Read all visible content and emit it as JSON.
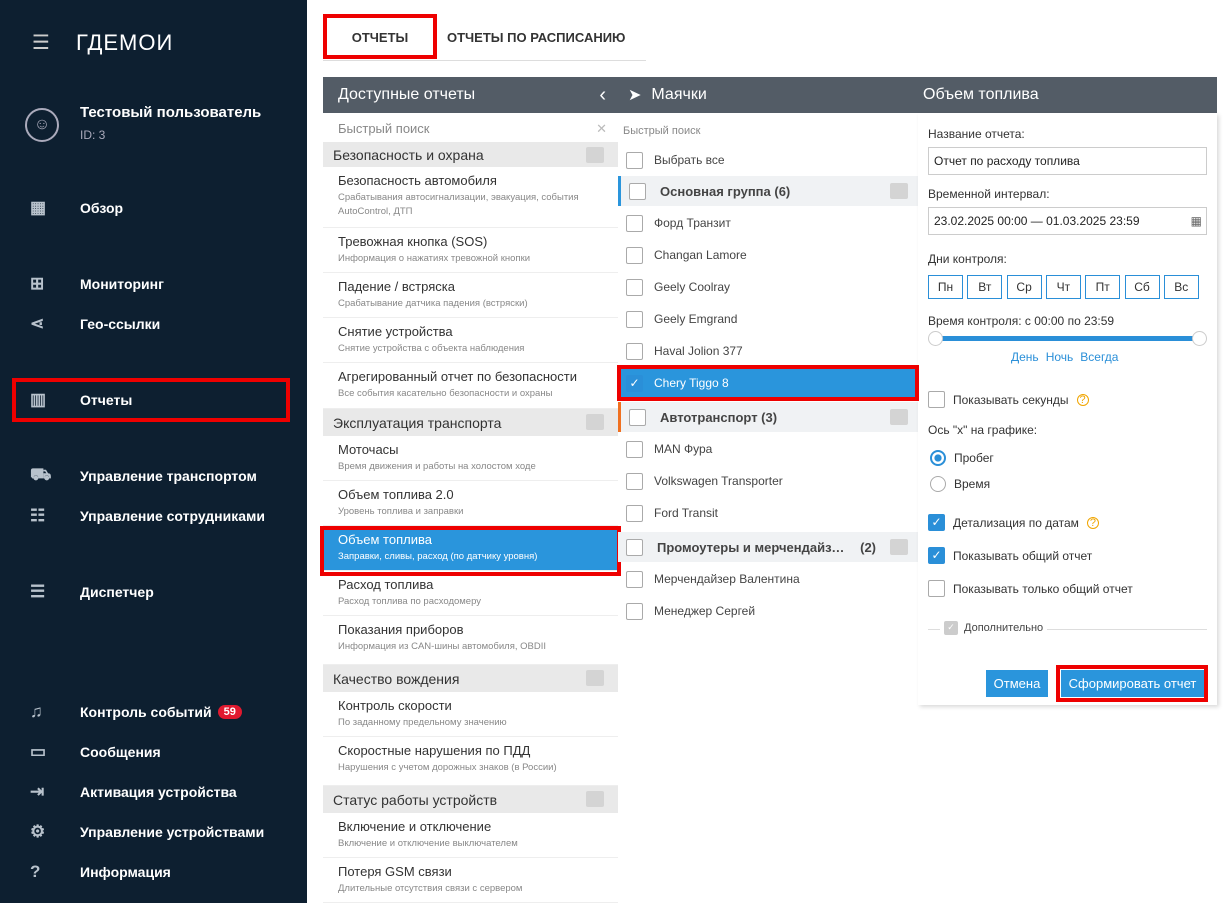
{
  "app": {
    "logo": "ГДЕМОИ",
    "user_name": "Тестовый пользователь",
    "user_id": "ID: 3"
  },
  "sidebar": {
    "items": [
      {
        "label": "Обзор",
        "icon": "dashboard-icon",
        "glyph": "▦"
      },
      {
        "label": "Мониторинг",
        "icon": "map-icon",
        "glyph": "⊞"
      },
      {
        "label": "Гео-ссылки",
        "icon": "share-icon",
        "glyph": "⋖"
      },
      {
        "label": "Отчеты",
        "icon": "chart-icon",
        "glyph": "▥",
        "active": true
      },
      {
        "label": "Управление транспортом",
        "icon": "car-icon",
        "glyph": "⛟"
      },
      {
        "label": "Управление сотрудниками",
        "icon": "people-icon",
        "glyph": "☷"
      },
      {
        "label": "Диспетчер",
        "icon": "clipboard-icon",
        "glyph": "☰"
      },
      {
        "label": "Контроль событий",
        "icon": "bell-icon",
        "glyph": "♫",
        "badge": "59"
      },
      {
        "label": "Сообщения",
        "icon": "message-icon",
        "glyph": "▭"
      },
      {
        "label": "Активация устройства",
        "icon": "login-icon",
        "glyph": "⇥"
      },
      {
        "label": "Управление устройствами",
        "icon": "gear-icon",
        "glyph": "⚙"
      },
      {
        "label": "Информация",
        "icon": "help-icon",
        "glyph": "?"
      }
    ]
  },
  "tabs": [
    "ОТЧЕТЫ",
    "ОТЧЕТЫ ПО РАСПИСАНИЮ"
  ],
  "reports": {
    "title": "Доступные отчеты",
    "search_placeholder": "Быстрый поиск",
    "groups": [
      {
        "label": "Безопасность и охрана",
        "items": [
          {
            "title": "Безопасность автомобиля",
            "desc": "Срабатывания автосигнализации, эвакуация, события AutoControl, ДТП"
          },
          {
            "title": "Тревожная кнопка (SOS)",
            "desc": "Информация о нажатиях тревожной кнопки"
          },
          {
            "title": "Падение / встряска",
            "desc": "Срабатывание датчика падения (встряски)"
          },
          {
            "title": "Снятие устройства",
            "desc": "Снятие устройства с объекта наблюдения"
          },
          {
            "title": "Агрегированный отчет по безопасности",
            "desc": "Все события касательно безопасности и охраны"
          }
        ]
      },
      {
        "label": "Эксплуатация транспорта",
        "items": [
          {
            "title": "Моточасы",
            "desc": "Время движения и работы на холостом ходе"
          },
          {
            "title": "Объем топлива 2.0",
            "desc": "Уровень топлива и заправки"
          },
          {
            "title": "Объем топлива",
            "desc": "Заправки, сливы, расход (по датчику уровня)",
            "selected": true
          },
          {
            "title": "Расход топлива",
            "desc": "Расход топлива по расходомеру"
          },
          {
            "title": "Показания приборов",
            "desc": "Информация из CAN-шины автомобиля, OBDII"
          }
        ]
      },
      {
        "label": "Качество вождения",
        "items": [
          {
            "title": "Контроль скорости",
            "desc": "По заданному предельному значению"
          },
          {
            "title": "Скоростные нарушения по ПДД",
            "desc": "Нарушения с учетом дорожных знаков (в России)"
          }
        ]
      },
      {
        "label": "Статус работы устройств",
        "items": [
          {
            "title": "Включение и отключение",
            "desc": "Включение и отключение выключателем"
          },
          {
            "title": "Потеря GSM связи",
            "desc": "Длительные отсутствия связи с сервером"
          }
        ]
      }
    ]
  },
  "trackers": {
    "title": "Маячки",
    "search_placeholder": "Быстрый поиск",
    "select_all": "Выбрать все",
    "groups": [
      {
        "label": "Основная группа (6)",
        "color": "#2a95dc",
        "items": [
          {
            "name": "Форд Транзит"
          },
          {
            "name": "Changan Lamore"
          },
          {
            "name": "Geely Coolray"
          },
          {
            "name": "Geely Emgrand"
          },
          {
            "name": "Haval Jolion 377"
          },
          {
            "name": "Chery Tiggo 8",
            "checked": true
          }
        ]
      },
      {
        "label": "Автотранспорт (3)",
        "color": "#f07020",
        "items": [
          {
            "name": "MAN Фура"
          },
          {
            "name": "Volkswagen Transporter"
          },
          {
            "name": "Ford Transit"
          }
        ]
      },
      {
        "label": "Промоутеры и мерчендайзе...",
        "count": "(2)",
        "color": "",
        "items": [
          {
            "name": "Мерчендайзер Валентина"
          },
          {
            "name": "Менеджер Сергей"
          }
        ]
      }
    ]
  },
  "form": {
    "title": "Объем топлива",
    "name_label": "Название отчета:",
    "name_value": "Отчет по расходу топлива",
    "interval_label": "Временной интервал:",
    "interval_value": "23.02.2025 00:00 — 01.03.2025 23:59",
    "days_label": "Дни контроля:",
    "days": [
      "Пн",
      "Вт",
      "Ср",
      "Чт",
      "Пт",
      "Сб",
      "Вс"
    ],
    "time_label": "Время контроля: с 00:00 по 23:59",
    "time_range_hours": [
      0,
      23.98
    ],
    "presets": [
      "День",
      "Ночь",
      "Всегда"
    ],
    "show_seconds": "Показывать секунды",
    "x_axis_label": "Ось \"х\" на графике:",
    "x_axis_options": [
      "Пробег",
      "Время"
    ],
    "x_axis_selected": "Пробег",
    "detail_by_dates": "Детализация по датам",
    "show_total": "Показывать общий отчет",
    "only_total": "Показывать только общий отчет",
    "additional": "Дополнительно",
    "cancel": "Отмена",
    "submit": "Сформировать отчет",
    "accent": "#2a95dc"
  }
}
